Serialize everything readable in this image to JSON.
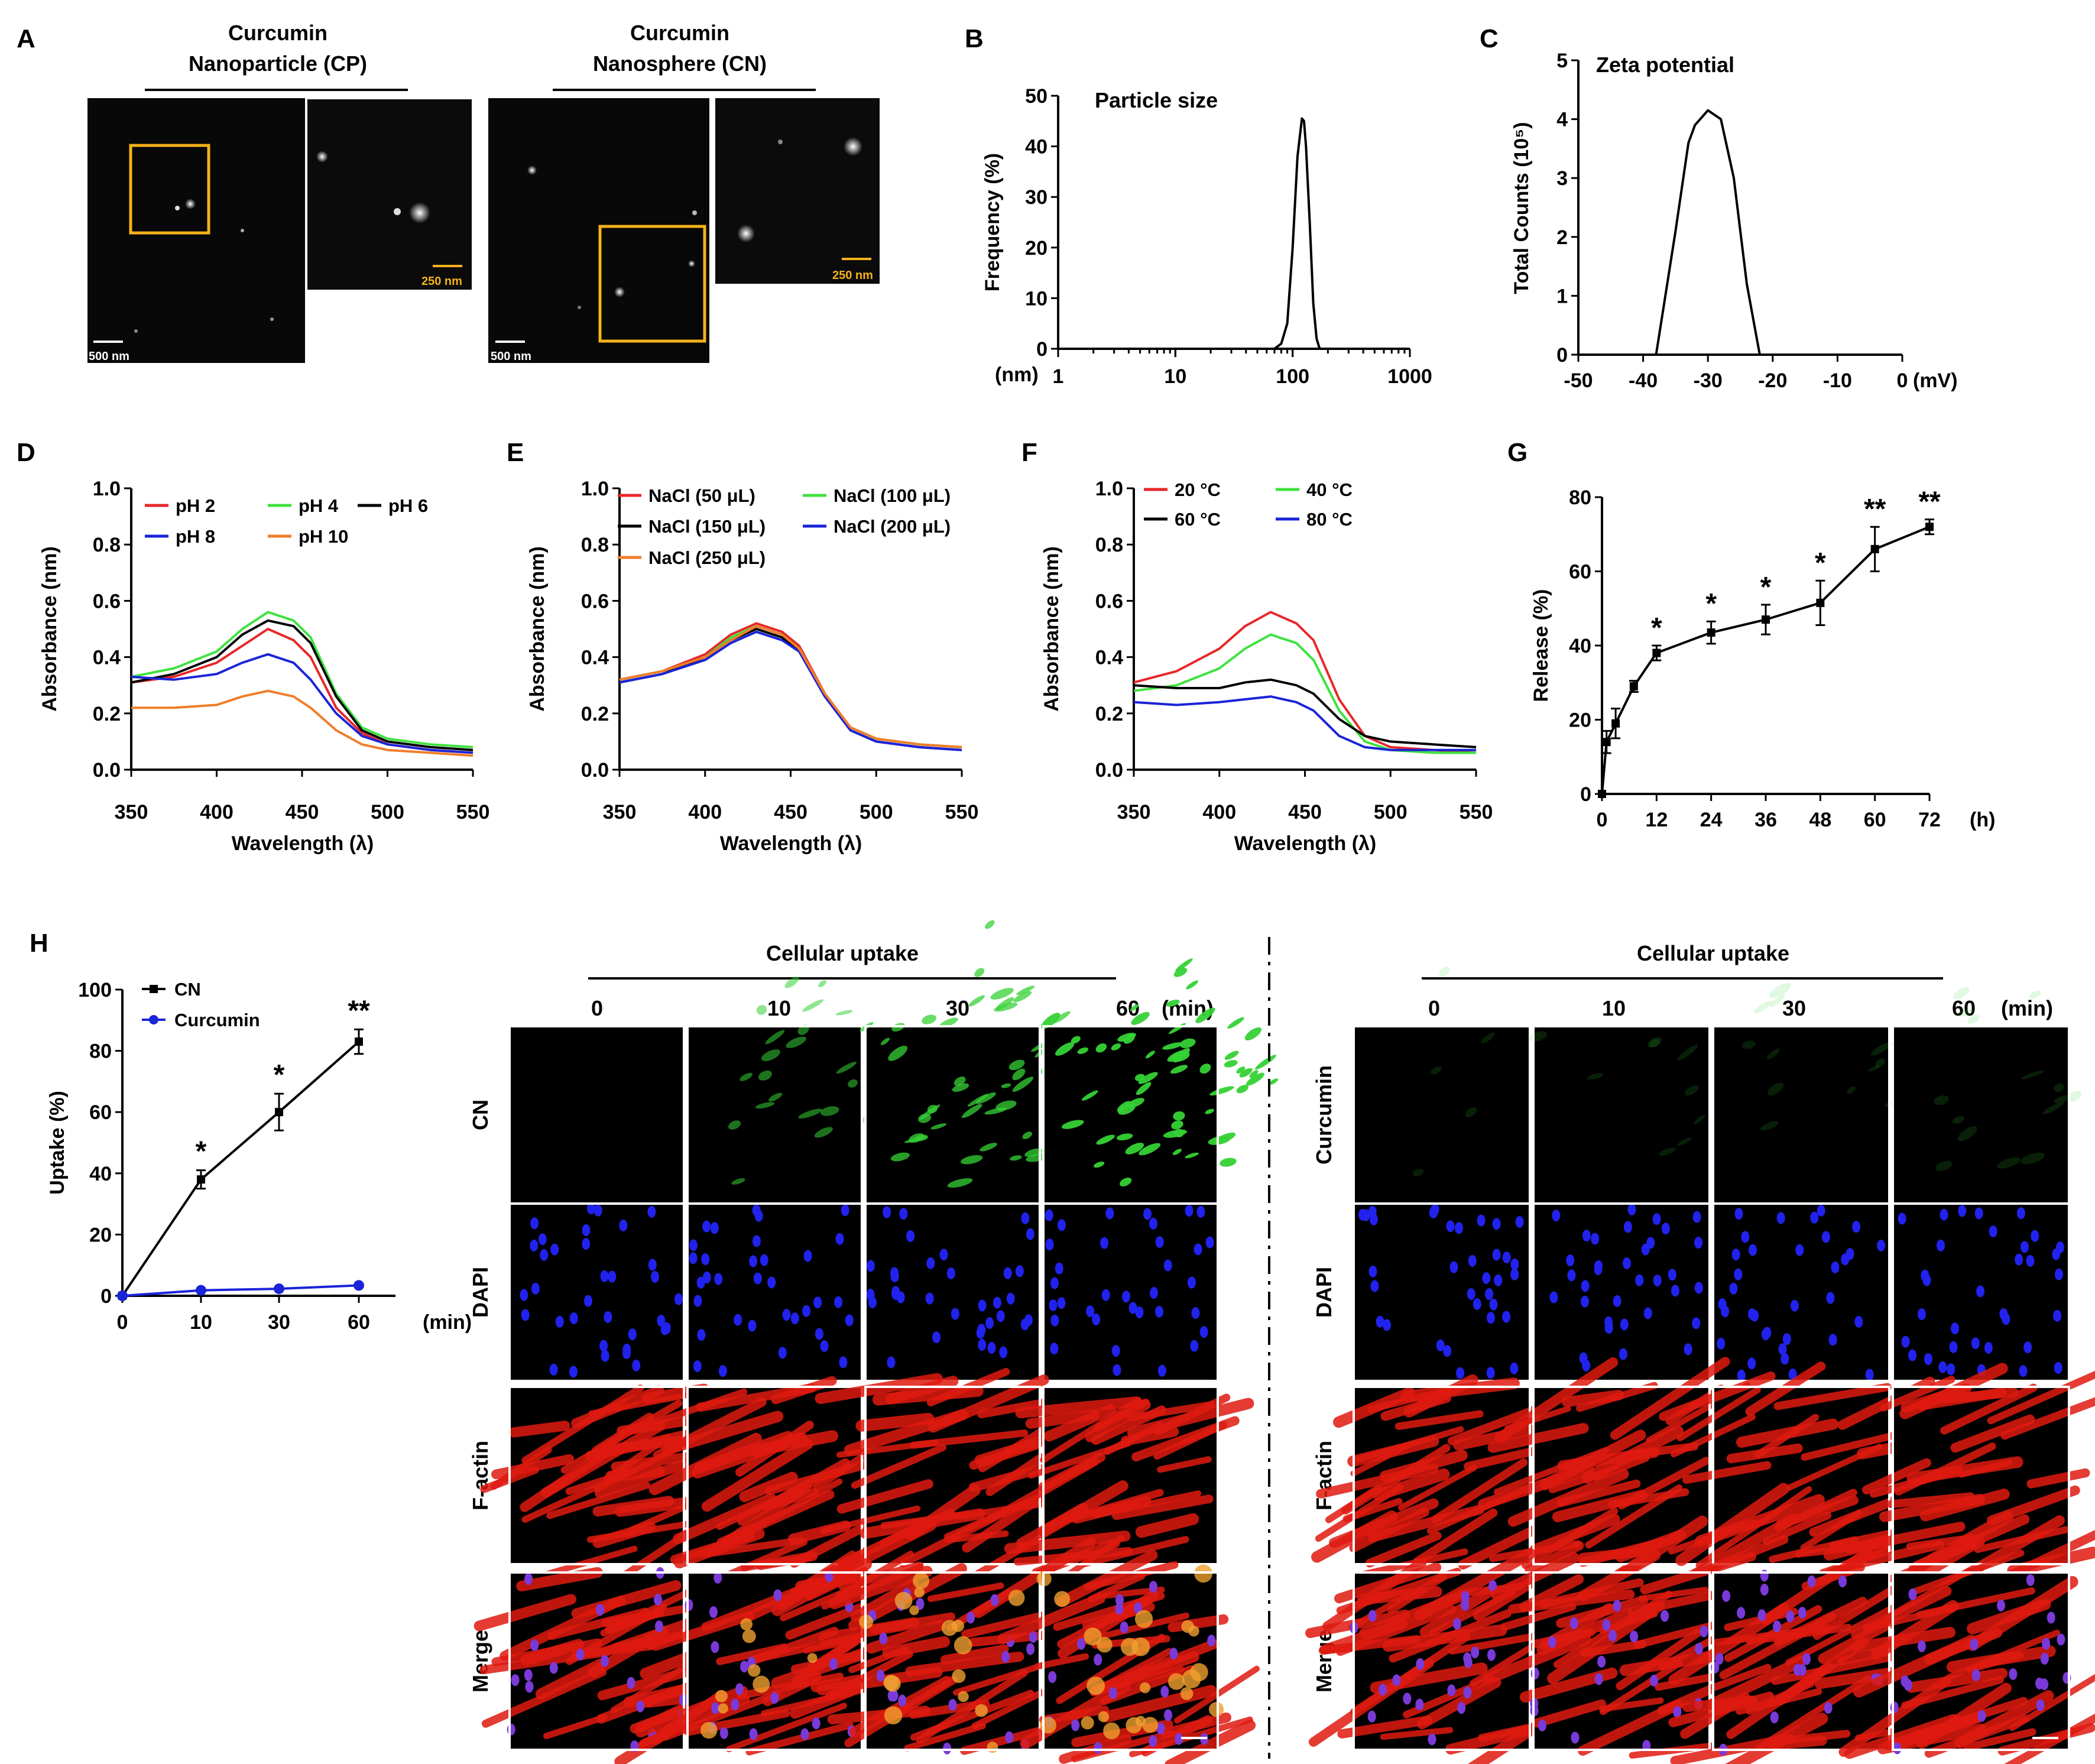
{
  "panel_labels": [
    "A",
    "B",
    "C",
    "D",
    "E",
    "F",
    "G",
    "H"
  ],
  "panel_a": {
    "cp_title_1": "Curcumin",
    "cp_title_2": "Nanoparticle (CP)",
    "cn_title_1": "Curcumin",
    "cn_title_2": "Nanosphere (CN)",
    "scale_large": "500 nm",
    "scale_small": "250 nm",
    "colors": {
      "highlight_box": "#f5b21a",
      "scale_small": "#f5b21a"
    }
  },
  "chart_data": [
    {
      "id": "B",
      "type": "line",
      "title": "Particle size",
      "xlabel": "(nm)",
      "ylabel": "Frequency (%)",
      "xscale": "log",
      "xlim": [
        1,
        1000
      ],
      "ylim": [
        0,
        50
      ],
      "xticks": [
        "1",
        "10",
        "100",
        "1000"
      ],
      "yticks": [
        "0",
        "10",
        "20",
        "30",
        "40",
        "50"
      ],
      "series": [
        {
          "name": "size",
          "color": "#000000",
          "x": [
            70,
            80,
            90,
            100,
            110,
            120,
            125,
            130,
            140,
            150,
            160,
            170
          ],
          "y": [
            0,
            1,
            5,
            20,
            38,
            45.5,
            45,
            40,
            25,
            9,
            2,
            0
          ]
        }
      ]
    },
    {
      "id": "C",
      "type": "line",
      "title": "Zeta potential",
      "xlabel": "(mV)",
      "ylabel": "Total Counts (10⁵)",
      "xlim": [
        -50,
        0
      ],
      "ylim": [
        0,
        5
      ],
      "xticks": [
        "-50",
        "-40",
        "-30",
        "-20",
        "-10",
        "0"
      ],
      "yticks": [
        "0",
        "1",
        "2",
        "3",
        "4",
        "5"
      ],
      "series": [
        {
          "name": "zeta",
          "color": "#000000",
          "x": [
            -38,
            -37,
            -35,
            -33,
            -32,
            -30,
            -28,
            -26,
            -24,
            -22
          ],
          "y": [
            0,
            0.7,
            2.1,
            3.6,
            3.9,
            4.15,
            4.0,
            3.0,
            1.2,
            0
          ]
        }
      ]
    },
    {
      "id": "D",
      "type": "line",
      "ylabel": "Absorbance (nm)",
      "xlabel": "Wavelength (λ)",
      "xlim": [
        350,
        550
      ],
      "ylim": [
        0,
        1.0
      ],
      "xticks": [
        "350",
        "400",
        "450",
        "500",
        "550"
      ],
      "yticks": [
        "0.0",
        "0.2",
        "0.4",
        "0.6",
        "0.8",
        "1.0"
      ],
      "legend": [
        [
          "pH 2",
          "pH 4",
          "pH 6"
        ],
        [
          "pH 8",
          "pH 10"
        ]
      ],
      "x": [
        350,
        375,
        400,
        415,
        430,
        445,
        455,
        470,
        485,
        500,
        525,
        550
      ],
      "series": [
        {
          "name": "pH 2",
          "color": "#e8262a",
          "y": [
            0.31,
            0.33,
            0.38,
            0.44,
            0.5,
            0.46,
            0.4,
            0.22,
            0.13,
            0.09,
            0.07,
            0.06
          ]
        },
        {
          "name": "pH 4",
          "color": "#3ee23e",
          "y": [
            0.33,
            0.36,
            0.42,
            0.5,
            0.56,
            0.53,
            0.47,
            0.27,
            0.15,
            0.11,
            0.09,
            0.08
          ]
        },
        {
          "name": "pH 6",
          "color": "#000000",
          "y": [
            0.31,
            0.34,
            0.4,
            0.48,
            0.53,
            0.51,
            0.45,
            0.26,
            0.14,
            0.1,
            0.08,
            0.07
          ]
        },
        {
          "name": "pH 8",
          "color": "#1a24d8",
          "y": [
            0.33,
            0.32,
            0.34,
            0.38,
            0.41,
            0.38,
            0.32,
            0.2,
            0.12,
            0.09,
            0.07,
            0.06
          ]
        },
        {
          "name": "pH 10",
          "color": "#f07d2a",
          "y": [
            0.22,
            0.22,
            0.23,
            0.26,
            0.28,
            0.26,
            0.22,
            0.14,
            0.09,
            0.07,
            0.06,
            0.05
          ]
        }
      ]
    },
    {
      "id": "E",
      "type": "line",
      "ylabel": "Absorbance (nm)",
      "xlabel": "Wavelength (λ)",
      "xlim": [
        350,
        550
      ],
      "ylim": [
        0,
        1.0
      ],
      "xticks": [
        "350",
        "400",
        "450",
        "500",
        "550"
      ],
      "yticks": [
        "0.0",
        "0.2",
        "0.4",
        "0.6",
        "0.8",
        "1.0"
      ],
      "legend": [
        [
          "NaCl (50 μL)",
          "NaCl (100 μL)"
        ],
        [
          "NaCl (150 μL)",
          "NaCl (200 μL)"
        ],
        [
          "NaCl (250 μL)"
        ]
      ],
      "x": [
        350,
        375,
        400,
        415,
        430,
        445,
        455,
        470,
        485,
        500,
        525,
        550
      ],
      "series": [
        {
          "name": "NaCl (50 μL)",
          "color": "#e8262a",
          "y": [
            0.32,
            0.35,
            0.41,
            0.48,
            0.52,
            0.49,
            0.44,
            0.27,
            0.15,
            0.11,
            0.09,
            0.08
          ]
        },
        {
          "name": "NaCl (100 μL)",
          "color": "#3ee23e",
          "y": [
            0.32,
            0.35,
            0.4,
            0.47,
            0.51,
            0.48,
            0.43,
            0.26,
            0.15,
            0.11,
            0.09,
            0.08
          ]
        },
        {
          "name": "NaCl (150 μL)",
          "color": "#000000",
          "y": [
            0.31,
            0.34,
            0.4,
            0.46,
            0.5,
            0.47,
            0.42,
            0.26,
            0.14,
            0.1,
            0.08,
            0.07
          ]
        },
        {
          "name": "NaCl (200 μL)",
          "color": "#1a24d8",
          "y": [
            0.31,
            0.34,
            0.39,
            0.45,
            0.49,
            0.46,
            0.42,
            0.26,
            0.14,
            0.1,
            0.08,
            0.07
          ]
        },
        {
          "name": "NaCl (250 μL)",
          "color": "#f07d2a",
          "y": [
            0.32,
            0.35,
            0.4,
            0.46,
            0.51,
            0.48,
            0.43,
            0.27,
            0.15,
            0.11,
            0.09,
            0.08
          ]
        }
      ]
    },
    {
      "id": "F",
      "type": "line",
      "ylabel": "Absorbance (nm)",
      "xlabel": "Wavelength (λ)",
      "xlim": [
        350,
        550
      ],
      "ylim": [
        0,
        1.0
      ],
      "xticks": [
        "350",
        "400",
        "450",
        "500",
        "550"
      ],
      "yticks": [
        "0.0",
        "0.2",
        "0.4",
        "0.6",
        "0.8",
        "1.0"
      ],
      "legend": [
        [
          "20 °C",
          "40 °C"
        ],
        [
          "60 °C",
          "80 °C"
        ]
      ],
      "x": [
        350,
        375,
        400,
        415,
        430,
        445,
        455,
        470,
        485,
        500,
        525,
        550
      ],
      "series": [
        {
          "name": "20 °C",
          "color": "#e8262a",
          "y": [
            0.31,
            0.35,
            0.43,
            0.51,
            0.56,
            0.52,
            0.46,
            0.25,
            0.12,
            0.08,
            0.07,
            0.06
          ]
        },
        {
          "name": "40 °C",
          "color": "#3ee23e",
          "y": [
            0.28,
            0.3,
            0.36,
            0.43,
            0.48,
            0.45,
            0.39,
            0.21,
            0.1,
            0.07,
            0.06,
            0.06
          ]
        },
        {
          "name": "60 °C",
          "color": "#000000",
          "y": [
            0.3,
            0.29,
            0.29,
            0.31,
            0.32,
            0.3,
            0.27,
            0.18,
            0.12,
            0.1,
            0.09,
            0.08
          ]
        },
        {
          "name": "80 °C",
          "color": "#1a24d8",
          "y": [
            0.24,
            0.23,
            0.24,
            0.25,
            0.26,
            0.24,
            0.21,
            0.12,
            0.08,
            0.07,
            0.07,
            0.07
          ]
        }
      ]
    },
    {
      "id": "G",
      "type": "line",
      "ylabel": "Release (%)",
      "xlabel": "(h)",
      "xlim": [
        0,
        72
      ],
      "ylim": [
        0,
        80
      ],
      "xticks": [
        "0",
        "12",
        "24",
        "36",
        "48",
        "60",
        "72"
      ],
      "yticks": [
        "0",
        "20",
        "40",
        "60",
        "80"
      ],
      "series": [
        {
          "name": "release",
          "color": "#000000",
          "x": [
            0,
            1,
            3,
            7,
            12,
            24,
            36,
            48,
            60,
            72
          ],
          "y": [
            0,
            14,
            19,
            29,
            38,
            43.5,
            47,
            51.5,
            66,
            72
          ],
          "err": [
            0,
            3,
            4,
            1.5,
            2,
            3,
            4,
            6,
            6,
            2
          ],
          "stars": [
            "",
            "",
            "",
            "",
            "*",
            "*",
            "*",
            "*",
            "**",
            "**"
          ]
        }
      ]
    },
    {
      "id": "H",
      "type": "line",
      "ylabel": "Uptake (%)",
      "xlabel": "(min)",
      "ylim": [
        0,
        100
      ],
      "categories": [
        "0",
        "10",
        "30",
        "60"
      ],
      "yticks": [
        "0",
        "20",
        "40",
        "60",
        "80",
        "100"
      ],
      "series": [
        {
          "name": "CN",
          "color": "#000000",
          "marker": "square",
          "values": [
            0,
            38,
            60,
            83
          ],
          "err": [
            0,
            3,
            6,
            4
          ],
          "stars": [
            "",
            "*",
            "*",
            "**"
          ]
        },
        {
          "name": "Curcumin",
          "color": "#1a24d8",
          "marker": "circle",
          "values": [
            0,
            1.8,
            2.3,
            3.4
          ],
          "err": [
            0,
            0,
            0,
            0
          ],
          "stars": [
            "",
            "",
            "",
            ""
          ]
        }
      ]
    }
  ],
  "uptake_grids": {
    "header": "Cellular uptake",
    "time_unit": "(min)",
    "time_labels": [
      "0",
      "10",
      "30",
      "60"
    ],
    "left_rows": [
      "CN",
      "DAPI",
      "F-actin",
      "Merge"
    ],
    "right_rows": [
      "Curcumin",
      "DAPI",
      "F-actin",
      "Merge"
    ],
    "colors": {
      "green": "#35d235",
      "blue": "#2222ee",
      "red": "#e01a10",
      "orange": "#f0a030"
    }
  }
}
